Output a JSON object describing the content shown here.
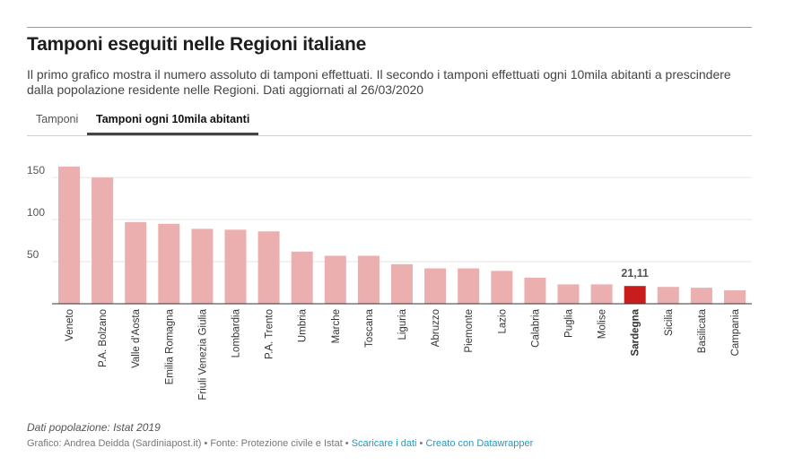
{
  "header": {
    "title": "Tamponi eseguiti nelle Regioni italiane",
    "subtitle": "Il primo grafico mostra il numero assoluto di tamponi effettuati. Il secondo i tamponi effettuati ogni 10mila abitanti a prescindere dalla popolazione residente nelle Regioni. Dati aggiornati al 26/03/2020"
  },
  "tabs": [
    {
      "label": "Tamponi",
      "active": false
    },
    {
      "label": "Tamponi ogni 10mila abitanti",
      "active": true
    }
  ],
  "colors": {
    "bar": "#ebafaf",
    "highlight": "#c71e1d",
    "grid": "#e5e5e5",
    "axis": "#333333",
    "link": "#1d9bc7"
  },
  "chart_data": {
    "type": "bar",
    "categories": [
      "Veneto",
      "P.A. Bolzano",
      "Valle d'Aosta",
      "Emilia Romagna",
      "Friuli Venezia Giulia",
      "Lombardia",
      "P.A. Trento",
      "Umbria",
      "Marche",
      "Toscana",
      "Liguria",
      "Abruzzo",
      "Piemonte",
      "Lazio",
      "Calabria",
      "Puglia",
      "Molise",
      "Sardegna",
      "Sicilia",
      "Basilicata",
      "Campania"
    ],
    "values": [
      163,
      150,
      97,
      95,
      89,
      88,
      86,
      62,
      57,
      57,
      47,
      42,
      42,
      39,
      31,
      23,
      23,
      21.11,
      20,
      19,
      16
    ],
    "highlight": "Sardegna",
    "highlight_label": "21,11",
    "title": "",
    "xlabel": "",
    "ylabel": "",
    "ylim": [
      0,
      165
    ],
    "yticks": [
      50,
      100,
      150
    ],
    "grid": true
  },
  "notes": "Dati popolazione: Istat 2019",
  "footer": {
    "credits": "Grafico: Andrea Deidda (Sardiniapost.it) • Fonte: Protezione civile e Istat • ",
    "download_link": "Scaricare i dati",
    "separator": " • ",
    "datawrapper_link": "Creato con Datawrapper"
  }
}
